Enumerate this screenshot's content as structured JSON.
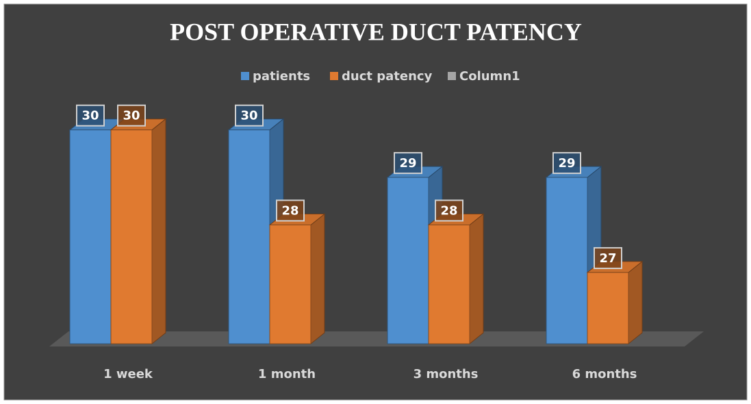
{
  "chart_data": {
    "type": "bar3d",
    "title": "POST OPERATIVE DUCT PATENCY",
    "categories": [
      "1 week",
      "1 month",
      "3 months",
      "6 months"
    ],
    "series": [
      {
        "name": "patients",
        "color": "#4f8fcf",
        "values": [
          30,
          30,
          29,
          29
        ]
      },
      {
        "name": "duct patency",
        "color": "#e07a30",
        "values": [
          30,
          28,
          28,
          27
        ]
      },
      {
        "name": "Column1",
        "color": "#a5a5a5",
        "values": [
          null,
          null,
          null,
          null
        ]
      }
    ],
    "ylim": [
      25.5,
      30.5
    ],
    "legend": "top"
  }
}
